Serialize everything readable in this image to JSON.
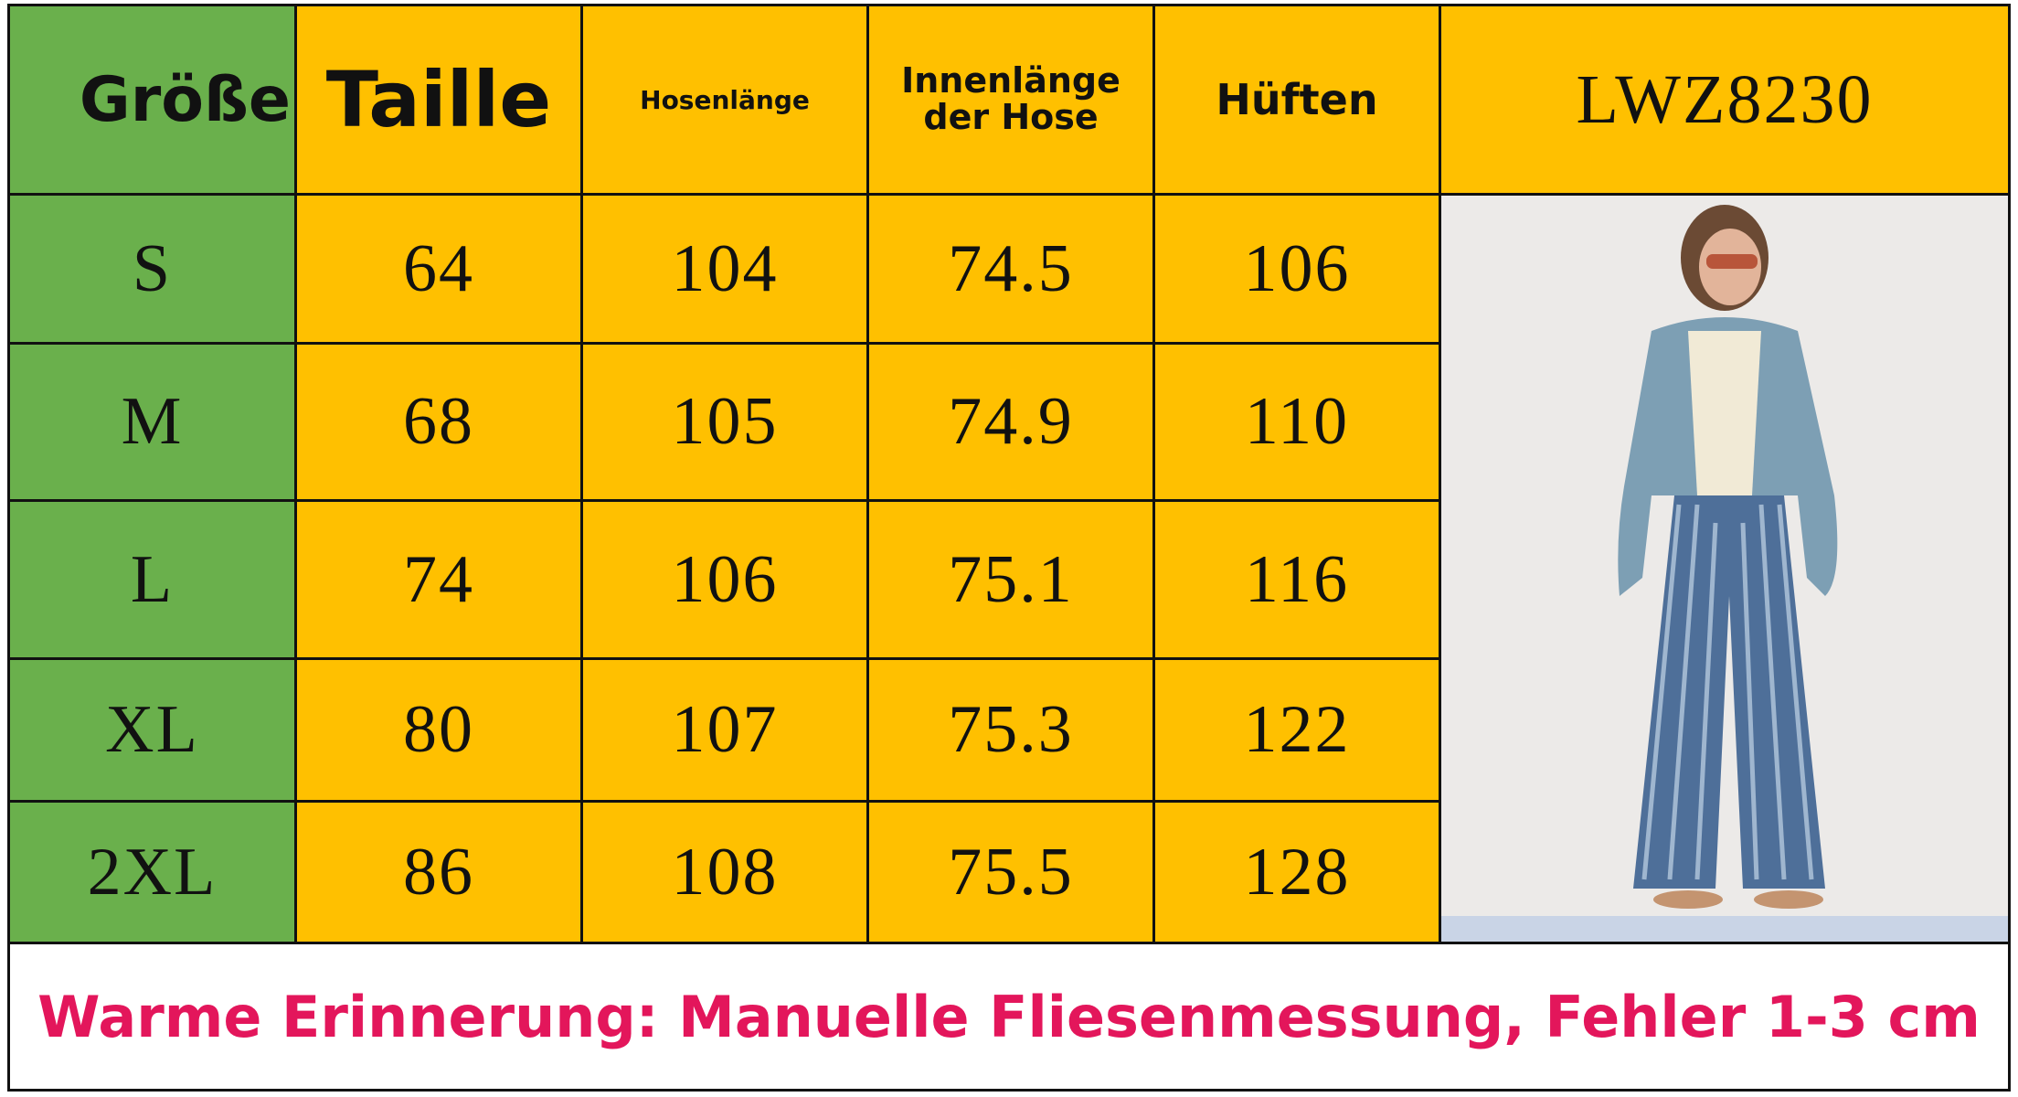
{
  "header": {
    "size": "Größe",
    "columns": [
      "Taille",
      "Hosenlänge",
      "Innenlänge der Hose",
      "Hüften"
    ],
    "model": "LWZ8230"
  },
  "rows": [
    [
      "S",
      "64",
      "104",
      "74.5",
      "106"
    ],
    [
      "M",
      "68",
      "105",
      "74.9",
      "110"
    ],
    [
      "L",
      "74",
      "106",
      "75.1",
      "116"
    ],
    [
      "XL",
      "80",
      "107",
      "75.3",
      "122"
    ],
    [
      "2XL",
      "86",
      "108",
      "75.5",
      "128"
    ]
  ],
  "note": "Warme Erinnerung: Manuelle Fliesenmessung, Fehler 1-3 cm"
}
